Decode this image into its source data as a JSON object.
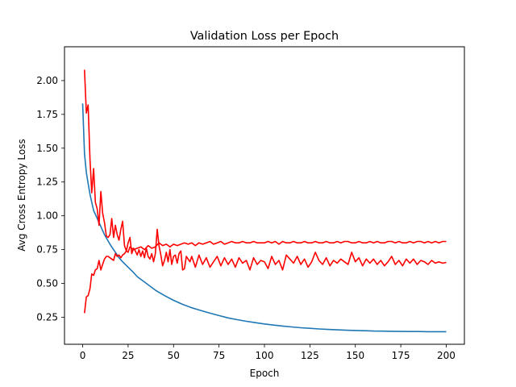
{
  "chart_data": {
    "type": "line",
    "title": "Validation Loss per Epoch",
    "xlabel": "Epoch",
    "ylabel": "Avg Cross Entropy Loss",
    "xlim": [
      -10,
      210
    ],
    "ylim": [
      0.05,
      2.25
    ],
    "xticks": [
      0,
      25,
      50,
      75,
      100,
      125,
      150,
      175,
      200
    ],
    "yticks": [
      0.25,
      0.5,
      0.75,
      1.0,
      1.25,
      1.5,
      1.75,
      2.0
    ],
    "ytick_labels": [
      "0.25",
      "0.50",
      "0.75",
      "1.00",
      "1.25",
      "1.50",
      "1.75",
      "2.00"
    ],
    "grid": false,
    "legend": "none",
    "series": [
      {
        "color": "#1f77b4",
        "points": [
          [
            0,
            1.83
          ],
          [
            1,
            1.46
          ],
          [
            2,
            1.32
          ],
          [
            3,
            1.24
          ],
          [
            4,
            1.16
          ],
          [
            5,
            1.1
          ],
          [
            6,
            1.04
          ],
          [
            8,
            0.98
          ],
          [
            10,
            0.92
          ],
          [
            12,
            0.86
          ],
          [
            15,
            0.79
          ],
          [
            18,
            0.73
          ],
          [
            20,
            0.69
          ],
          [
            22,
            0.66
          ],
          [
            25,
            0.62
          ],
          [
            28,
            0.58
          ],
          [
            30,
            0.55
          ],
          [
            35,
            0.5
          ],
          [
            40,
            0.45
          ],
          [
            45,
            0.41
          ],
          [
            50,
            0.375
          ],
          [
            55,
            0.345
          ],
          [
            60,
            0.32
          ],
          [
            65,
            0.3
          ],
          [
            70,
            0.28
          ],
          [
            75,
            0.262
          ],
          [
            80,
            0.245
          ],
          [
            85,
            0.232
          ],
          [
            90,
            0.22
          ],
          [
            95,
            0.21
          ],
          [
            100,
            0.2
          ],
          [
            105,
            0.192
          ],
          [
            110,
            0.185
          ],
          [
            115,
            0.178
          ],
          [
            120,
            0.172
          ],
          [
            125,
            0.168
          ],
          [
            130,
            0.163
          ],
          [
            135,
            0.16
          ],
          [
            140,
            0.157
          ],
          [
            145,
            0.154
          ],
          [
            150,
            0.152
          ],
          [
            155,
            0.15
          ],
          [
            160,
            0.148
          ],
          [
            165,
            0.147
          ],
          [
            170,
            0.146
          ],
          [
            175,
            0.145
          ],
          [
            180,
            0.144
          ],
          [
            185,
            0.144
          ],
          [
            190,
            0.143
          ],
          [
            195,
            0.143
          ],
          [
            200,
            0.143
          ]
        ]
      },
      {
        "color": "#ff0000",
        "points": [
          [
            1,
            2.08
          ],
          [
            2,
            1.76
          ],
          [
            3,
            1.82
          ],
          [
            4,
            1.42
          ],
          [
            5,
            1.17
          ],
          [
            6,
            1.35
          ],
          [
            7,
            1.1
          ],
          [
            8,
            1.05
          ],
          [
            9,
            0.93
          ],
          [
            10,
            1.18
          ],
          [
            11,
            1.02
          ],
          [
            12,
            0.95
          ],
          [
            13,
            0.85
          ],
          [
            14,
            0.84
          ],
          [
            15,
            0.86
          ],
          [
            16,
            0.98
          ],
          [
            17,
            0.84
          ],
          [
            18,
            0.93
          ],
          [
            19,
            0.86
          ],
          [
            20,
            0.82
          ],
          [
            21,
            0.9
          ],
          [
            22,
            0.96
          ],
          [
            23,
            0.78
          ],
          [
            24,
            0.74
          ],
          [
            25,
            0.8
          ],
          [
            26,
            0.84
          ],
          [
            27,
            0.72
          ],
          [
            28,
            0.76
          ],
          [
            29,
            0.74
          ],
          [
            30,
            0.71
          ],
          [
            31,
            0.75
          ],
          [
            32,
            0.7
          ],
          [
            33,
            0.74
          ],
          [
            34,
            0.69
          ],
          [
            35,
            0.76
          ],
          [
            36,
            0.7
          ],
          [
            37,
            0.68
          ],
          [
            38,
            0.72
          ],
          [
            39,
            0.66
          ],
          [
            40,
            0.72
          ],
          [
            41,
            0.9
          ],
          [
            42,
            0.78
          ],
          [
            43,
            0.71
          ],
          [
            44,
            0.63
          ],
          [
            45,
            0.67
          ],
          [
            46,
            0.73
          ],
          [
            47,
            0.66
          ],
          [
            48,
            0.75
          ],
          [
            49,
            0.64
          ],
          [
            50,
            0.7
          ],
          [
            51,
            0.71
          ],
          [
            52,
            0.65
          ],
          [
            53,
            0.72
          ],
          [
            54,
            0.74
          ],
          [
            55,
            0.6
          ],
          [
            56,
            0.61
          ],
          [
            57,
            0.7
          ],
          [
            58,
            0.68
          ],
          [
            59,
            0.66
          ],
          [
            60,
            0.7
          ],
          [
            62,
            0.62
          ],
          [
            64,
            0.71
          ],
          [
            66,
            0.64
          ],
          [
            68,
            0.69
          ],
          [
            70,
            0.62
          ],
          [
            72,
            0.66
          ],
          [
            74,
            0.7
          ],
          [
            76,
            0.63
          ],
          [
            78,
            0.69
          ],
          [
            80,
            0.64
          ],
          [
            82,
            0.68
          ],
          [
            84,
            0.62
          ],
          [
            86,
            0.69
          ],
          [
            88,
            0.65
          ],
          [
            90,
            0.67
          ],
          [
            92,
            0.6
          ],
          [
            94,
            0.69
          ],
          [
            96,
            0.64
          ],
          [
            98,
            0.67
          ],
          [
            100,
            0.66
          ],
          [
            102,
            0.61
          ],
          [
            104,
            0.7
          ],
          [
            106,
            0.64
          ],
          [
            108,
            0.67
          ],
          [
            110,
            0.6
          ],
          [
            112,
            0.71
          ],
          [
            114,
            0.68
          ],
          [
            116,
            0.65
          ],
          [
            118,
            0.7
          ],
          [
            120,
            0.64
          ],
          [
            122,
            0.68
          ],
          [
            124,
            0.62
          ],
          [
            126,
            0.66
          ],
          [
            128,
            0.73
          ],
          [
            130,
            0.67
          ],
          [
            132,
            0.64
          ],
          [
            134,
            0.69
          ],
          [
            136,
            0.63
          ],
          [
            138,
            0.67
          ],
          [
            140,
            0.65
          ],
          [
            142,
            0.68
          ],
          [
            144,
            0.66
          ],
          [
            146,
            0.64
          ],
          [
            148,
            0.73
          ],
          [
            150,
            0.66
          ],
          [
            152,
            0.69
          ],
          [
            154,
            0.63
          ],
          [
            156,
            0.68
          ],
          [
            158,
            0.65
          ],
          [
            160,
            0.68
          ],
          [
            162,
            0.64
          ],
          [
            164,
            0.67
          ],
          [
            166,
            0.63
          ],
          [
            168,
            0.66
          ],
          [
            170,
            0.7
          ],
          [
            172,
            0.64
          ],
          [
            174,
            0.67
          ],
          [
            176,
            0.63
          ],
          [
            178,
            0.68
          ],
          [
            180,
            0.65
          ],
          [
            182,
            0.68
          ],
          [
            184,
            0.64
          ],
          [
            186,
            0.67
          ],
          [
            188,
            0.66
          ],
          [
            190,
            0.64
          ],
          [
            192,
            0.67
          ],
          [
            194,
            0.65
          ],
          [
            196,
            0.66
          ],
          [
            198,
            0.65
          ],
          [
            200,
            0.655
          ]
        ]
      },
      {
        "color": "#ff0000",
        "points": [
          [
            1,
            0.28
          ],
          [
            2,
            0.4
          ],
          [
            3,
            0.41
          ],
          [
            4,
            0.46
          ],
          [
            5,
            0.57
          ],
          [
            6,
            0.56
          ],
          [
            7,
            0.6
          ],
          [
            8,
            0.61
          ],
          [
            9,
            0.67
          ],
          [
            10,
            0.6
          ],
          [
            11,
            0.64
          ],
          [
            12,
            0.68
          ],
          [
            13,
            0.7
          ],
          [
            14,
            0.7
          ],
          [
            15,
            0.69
          ],
          [
            16,
            0.68
          ],
          [
            17,
            0.67
          ],
          [
            18,
            0.72
          ],
          [
            19,
            0.7
          ],
          [
            20,
            0.71
          ],
          [
            21,
            0.69
          ],
          [
            22,
            0.71
          ],
          [
            23,
            0.72
          ],
          [
            24,
            0.74
          ],
          [
            25,
            0.73
          ],
          [
            26,
            0.77
          ],
          [
            27,
            0.76
          ],
          [
            28,
            0.75
          ],
          [
            30,
            0.76
          ],
          [
            32,
            0.77
          ],
          [
            34,
            0.75
          ],
          [
            36,
            0.78
          ],
          [
            38,
            0.76
          ],
          [
            40,
            0.77
          ],
          [
            42,
            0.8
          ],
          [
            44,
            0.78
          ],
          [
            46,
            0.79
          ],
          [
            48,
            0.77
          ],
          [
            50,
            0.79
          ],
          [
            52,
            0.78
          ],
          [
            54,
            0.79
          ],
          [
            56,
            0.8
          ],
          [
            58,
            0.79
          ],
          [
            60,
            0.8
          ],
          [
            62,
            0.78
          ],
          [
            64,
            0.8
          ],
          [
            66,
            0.79
          ],
          [
            68,
            0.8
          ],
          [
            70,
            0.81
          ],
          [
            72,
            0.79
          ],
          [
            74,
            0.8
          ],
          [
            76,
            0.81
          ],
          [
            78,
            0.79
          ],
          [
            80,
            0.8
          ],
          [
            82,
            0.81
          ],
          [
            84,
            0.8
          ],
          [
            86,
            0.8
          ],
          [
            88,
            0.81
          ],
          [
            90,
            0.8
          ],
          [
            92,
            0.8
          ],
          [
            94,
            0.81
          ],
          [
            96,
            0.8
          ],
          [
            98,
            0.8
          ],
          [
            100,
            0.8
          ],
          [
            102,
            0.81
          ],
          [
            104,
            0.8
          ],
          [
            106,
            0.81
          ],
          [
            108,
            0.79
          ],
          [
            110,
            0.81
          ],
          [
            112,
            0.8
          ],
          [
            114,
            0.8
          ],
          [
            116,
            0.81
          ],
          [
            118,
            0.8
          ],
          [
            120,
            0.8
          ],
          [
            122,
            0.81
          ],
          [
            124,
            0.8
          ],
          [
            126,
            0.8
          ],
          [
            128,
            0.81
          ],
          [
            130,
            0.8
          ],
          [
            132,
            0.8
          ],
          [
            134,
            0.81
          ],
          [
            136,
            0.8
          ],
          [
            138,
            0.8
          ],
          [
            140,
            0.81
          ],
          [
            142,
            0.8
          ],
          [
            144,
            0.81
          ],
          [
            146,
            0.81
          ],
          [
            148,
            0.8
          ],
          [
            150,
            0.8
          ],
          [
            152,
            0.81
          ],
          [
            154,
            0.8
          ],
          [
            156,
            0.8
          ],
          [
            158,
            0.81
          ],
          [
            160,
            0.8
          ],
          [
            162,
            0.81
          ],
          [
            164,
            0.8
          ],
          [
            166,
            0.8
          ],
          [
            168,
            0.81
          ],
          [
            170,
            0.81
          ],
          [
            172,
            0.8
          ],
          [
            174,
            0.81
          ],
          [
            176,
            0.8
          ],
          [
            178,
            0.8
          ],
          [
            180,
            0.81
          ],
          [
            182,
            0.8
          ],
          [
            184,
            0.81
          ],
          [
            186,
            0.81
          ],
          [
            188,
            0.8
          ],
          [
            190,
            0.81
          ],
          [
            192,
            0.8
          ],
          [
            194,
            0.81
          ],
          [
            196,
            0.8
          ],
          [
            198,
            0.81
          ],
          [
            200,
            0.81
          ]
        ]
      }
    ]
  }
}
